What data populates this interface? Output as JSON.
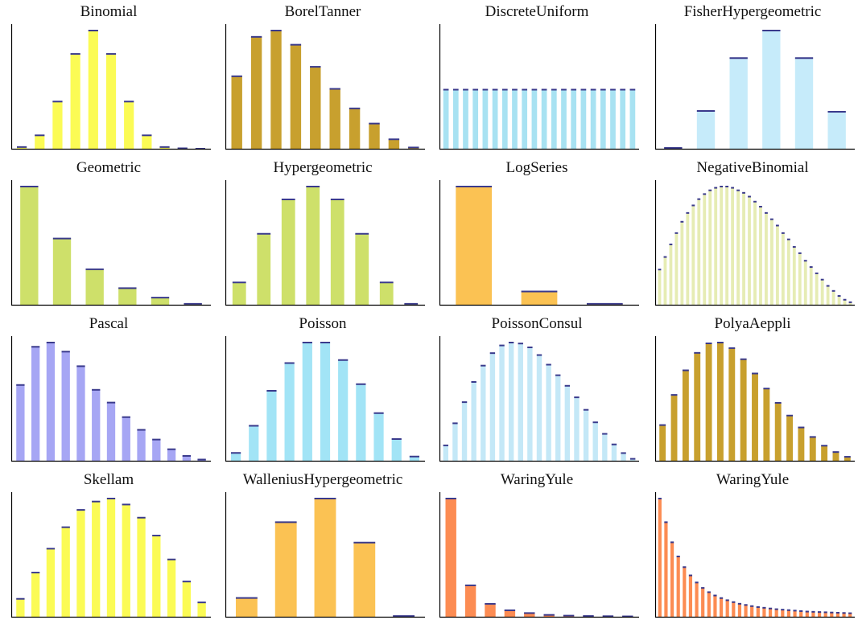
{
  "colors": {
    "yellow": "#fbfb55",
    "gold": "#c8a02e",
    "lightcyan": "#a8e2f2",
    "paleblue": "#c6ebfa",
    "olive": "#cee06a",
    "orange": "#fbc253",
    "palegreen": "#e6ecb4",
    "lavender": "#a6a6f4",
    "skyblue": "#a2e4f6",
    "paleskyblue": "#c4e8f7",
    "coral": "#fc8c53",
    "cap": "#3a3a8c",
    "axis": "#000000"
  },
  "chart_data": [
    {
      "type": "bar",
      "title": "Binomial",
      "color": "yellow",
      "values": [
        0.004,
        0.031,
        0.109,
        0.219,
        0.273,
        0.219,
        0.109,
        0.031,
        0.004,
        0.001,
        0.0
      ],
      "ylim": [
        0,
        0.273
      ]
    },
    {
      "type": "bar",
      "title": "BorelTanner",
      "color": "gold",
      "values": [
        0.23,
        0.355,
        0.375,
        0.33,
        0.26,
        0.19,
        0.128,
        0.08,
        0.03,
        0.004
      ],
      "ylim": [
        0,
        0.375
      ]
    },
    {
      "type": "bar",
      "title": "DiscreteUniform",
      "color": "lightcyan",
      "values": [
        0.05,
        0.05,
        0.05,
        0.05,
        0.05,
        0.05,
        0.05,
        0.05,
        0.05,
        0.05,
        0.05,
        0.05,
        0.05,
        0.05,
        0.05,
        0.05,
        0.05,
        0.05,
        0.05,
        0.05
      ],
      "ylim": [
        0,
        0.1
      ]
    },
    {
      "type": "bar",
      "title": "FisherHypergeometric",
      "color": "paleblue",
      "values": [
        0.002,
        0.1,
        0.24,
        0.313,
        0.24,
        0.098
      ],
      "ylim": [
        0,
        0.313
      ]
    },
    {
      "type": "bar",
      "title": "Geometric",
      "color": "olive",
      "values": [
        0.5,
        0.28,
        0.15,
        0.07,
        0.03,
        0.004
      ],
      "ylim": [
        0,
        0.5
      ]
    },
    {
      "type": "bar",
      "title": "Hypergeometric",
      "color": "olive",
      "values": [
        0.052,
        0.165,
        0.245,
        0.275,
        0.245,
        0.165,
        0.052,
        0.002
      ],
      "ylim": [
        0,
        0.275
      ]
    },
    {
      "type": "bar",
      "title": "LogSeries",
      "color": "orange",
      "values": [
        0.9,
        0.101,
        0.007
      ],
      "ylim": [
        0,
        0.9
      ]
    },
    {
      "type": "bar",
      "title": "NegativeBinomial",
      "color": "palegreen",
      "values": [
        0.028,
        0.038,
        0.048,
        0.057,
        0.066,
        0.073,
        0.079,
        0.084,
        0.088,
        0.091,
        0.093,
        0.094,
        0.094,
        0.093,
        0.091,
        0.089,
        0.086,
        0.082,
        0.078,
        0.073,
        0.068,
        0.063,
        0.057,
        0.052,
        0.046,
        0.041,
        0.035,
        0.03,
        0.025,
        0.02,
        0.015,
        0.011,
        0.007,
        0.004,
        0.002
      ],
      "ylim": [
        0,
        0.094
      ]
    },
    {
      "type": "bar",
      "title": "Pascal",
      "color": "lavender",
      "values": [
        0.125,
        0.188,
        0.195,
        0.18,
        0.156,
        0.117,
        0.096,
        0.072,
        0.051,
        0.035,
        0.019,
        0.008,
        0.002
      ],
      "ylim": [
        0,
        0.195
      ]
    },
    {
      "type": "bar",
      "title": "Poisson",
      "color": "skyblue",
      "values": [
        0.013,
        0.058,
        0.116,
        0.162,
        0.196,
        0.196,
        0.167,
        0.127,
        0.079,
        0.036,
        0.007
      ],
      "ylim": [
        0,
        0.196
      ]
    },
    {
      "type": "bar",
      "title": "PoissonConsul",
      "color": "paleskyblue",
      "values": [
        0.016,
        0.039,
        0.061,
        0.082,
        0.099,
        0.112,
        0.12,
        0.123,
        0.122,
        0.118,
        0.11,
        0.1,
        0.089,
        0.078,
        0.066,
        0.053,
        0.04,
        0.028,
        0.017,
        0.008,
        0.002
      ],
      "ylim": [
        0,
        0.123
      ]
    },
    {
      "type": "bar",
      "title": "PolyaAeppli",
      "color": "gold",
      "values": [
        0.045,
        0.083,
        0.114,
        0.136,
        0.148,
        0.149,
        0.142,
        0.128,
        0.11,
        0.091,
        0.073,
        0.057,
        0.042,
        0.03,
        0.019,
        0.011,
        0.005
      ],
      "ylim": [
        0,
        0.149
      ]
    },
    {
      "type": "bar",
      "title": "Skellam",
      "color": "yellow",
      "values": [
        0.03,
        0.074,
        0.114,
        0.15,
        0.179,
        0.193,
        0.198,
        0.188,
        0.166,
        0.136,
        0.096,
        0.059,
        0.024
      ],
      "ylim": [
        0,
        0.198
      ]
    },
    {
      "type": "bar",
      "title": "WalleniusHypergeometric",
      "color": "orange",
      "values": [
        0.055,
        0.277,
        0.346,
        0.217,
        0.002
      ],
      "ylim": [
        0,
        0.346
      ]
    },
    {
      "type": "bar",
      "title": "WaringYule",
      "color": "coral",
      "values": [
        0.64,
        0.17,
        0.07,
        0.035,
        0.02,
        0.01,
        0.006,
        0.004,
        0.003,
        0.002
      ],
      "ylim": [
        0,
        0.64
      ]
    },
    {
      "type": "bar",
      "title": "WaringYule",
      "color": "coral",
      "values": [
        0.5,
        0.4,
        0.315,
        0.255,
        0.21,
        0.175,
        0.145,
        0.122,
        0.104,
        0.09,
        0.079,
        0.07,
        0.062,
        0.055,
        0.05,
        0.045,
        0.041,
        0.038,
        0.035,
        0.032,
        0.03,
        0.028,
        0.026,
        0.024,
        0.022,
        0.021,
        0.02,
        0.019,
        0.018,
        0.017,
        0.016,
        0.015
      ],
      "ylim": [
        0,
        0.5
      ]
    }
  ]
}
